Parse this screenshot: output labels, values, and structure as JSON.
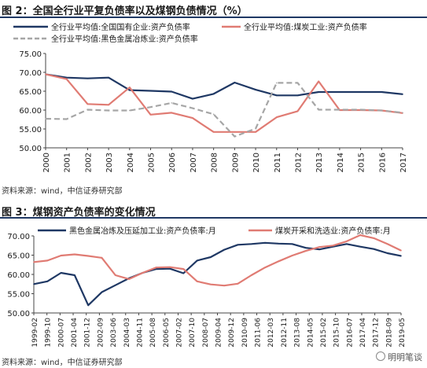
{
  "fig1": {
    "title": "图 2：全国全行业平复负债率以及煤钢负债情况（%）",
    "source": "资料来源：wind，中信证券研究部"
  },
  "fig2": {
    "title": "图 3：煤钢资产负债率的变化情况",
    "source": "资料来源：wind，中信证券研究部"
  },
  "watermark": "明明笔谈",
  "chart_data": [
    {
      "type": "line",
      "title": "图 2：全国全行业平复负债率以及煤钢负债情况（%）",
      "xlabel": "",
      "ylabel": "",
      "categories": [
        "2000",
        "2001",
        "2002",
        "2003",
        "2004",
        "2005",
        "2006",
        "2007",
        "2008",
        "2009",
        "2010",
        "2011",
        "2012",
        "2013",
        "2014",
        "2015",
        "2016",
        "2017"
      ],
      "ylim": [
        50,
        75
      ],
      "yticks": [
        "50.00",
        "55.00",
        "60.00",
        "65.00",
        "70.00",
        "75.00"
      ],
      "legend": "top",
      "grid": false,
      "series": [
        {
          "name": "全行业平均值:全国国有企业:资产负债率",
          "color": "#1f3864",
          "dash": "solid",
          "values": [
            69.5,
            68.6,
            68.4,
            68.6,
            65.3,
            65.1,
            64.9,
            63.0,
            64.3,
            67.3,
            65.4,
            63.9,
            63.9,
            64.8,
            64.8,
            64.8,
            64.8,
            64.2
          ]
        },
        {
          "name": "全行业平均值:煤炭工业:资产负债率",
          "color": "#e07b73",
          "dash": "solid",
          "values": [
            69.5,
            68.2,
            61.6,
            61.4,
            66.0,
            58.8,
            59.3,
            57.9,
            54.2,
            54.2,
            54.2,
            58.1,
            59.7,
            67.6,
            60.0,
            60.0,
            59.9,
            59.2
          ]
        },
        {
          "name": "全行业平均值:黑色金属冶炼业:资产负债率",
          "color": "#a6a6a6",
          "dash": "dashed",
          "values": [
            57.7,
            57.6,
            60.1,
            59.9,
            59.9,
            60.8,
            61.9,
            60.5,
            58.9,
            53.0,
            55.1,
            67.2,
            67.2,
            60.1,
            60.1,
            60.1,
            59.9,
            59.3
          ]
        }
      ]
    },
    {
      "type": "line",
      "title": "图 3：煤钢资产负债率的变化情况",
      "xlabel": "",
      "ylabel": "",
      "categories": [
        "1999-02",
        "1999-10",
        "2000-07",
        "2001-04",
        "2001-12",
        "2002-09",
        "2003-06",
        "2004-03",
        "2004-11",
        "2005-08",
        "2006-05",
        "2007-02",
        "2007-10",
        "2008-07",
        "2009-04",
        "2009-12",
        "2010-09",
        "2011-06",
        "2012-03",
        "2012-11",
        "2013-08",
        "2014-05",
        "2015-02",
        "2015-10",
        "2016-07",
        "2017-04",
        "2017-12",
        "2018-09"
      ],
      "xticks": [
        "1999-02",
        "1999-10",
        "2000-07",
        "2001-04",
        "2001-12",
        "2002-09",
        "2003-06",
        "2004-03",
        "2004-11",
        "2005-08",
        "2006-05",
        "2007-02",
        "2007-10",
        "2008-07",
        "2009-04",
        "2009-12",
        "2010-09",
        "2011-06",
        "2012-03",
        "2012-11",
        "2013-08",
        "2014-05",
        "2015-02",
        "2015-10",
        "2016-07",
        "2017-04",
        "2017-12",
        "2018-09",
        "2019-05"
      ],
      "ylim": [
        50,
        70
      ],
      "yticks": [
        "50.00",
        "55.00",
        "60.00",
        "65.00",
        "70.00"
      ],
      "legend": "top",
      "grid": false,
      "series": [
        {
          "name": "黑色金属冶炼及压延加工业:资产负债率:月",
          "color": "#1f3864",
          "values": [
            57.5,
            58.2,
            60.4,
            59.8,
            52.0,
            55.4,
            57.2,
            59.0,
            60.4,
            61.4,
            61.5,
            60.3,
            63.6,
            64.5,
            66.4,
            67.7,
            67.9,
            68.2,
            68.0,
            67.9,
            66.9,
            66.5,
            67.2,
            67.9,
            67.2,
            66.6,
            65.5,
            64.8
          ]
        },
        {
          "name": "煤炭开采和洗选业:资产负债率:月",
          "color": "#e07b73",
          "values": [
            63.2,
            63.6,
            64.9,
            65.2,
            64.8,
            64.3,
            59.8,
            58.8,
            60.4,
            61.8,
            61.9,
            61.4,
            58.2,
            57.4,
            57.1,
            57.6,
            59.8,
            61.8,
            63.4,
            64.9,
            66.1,
            67.1,
            67.5,
            68.6,
            70.2,
            69.4,
            67.9,
            66.2
          ]
        }
      ]
    }
  ]
}
